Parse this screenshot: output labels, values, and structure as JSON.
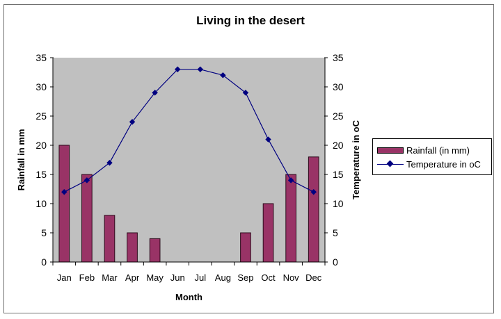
{
  "chart_data": {
    "type": "bar+line",
    "title": "Living in the desert",
    "xlabel": "Month",
    "ylabel": "Rainfall in mm",
    "y2label": "Temperature in oC",
    "categories": [
      "Jan",
      "Feb",
      "Mar",
      "Apr",
      "May",
      "Jun",
      "Jul",
      "Aug",
      "Sep",
      "Oct",
      "Nov",
      "Dec"
    ],
    "series": [
      {
        "name": "Rainfall (in mm)",
        "type": "bar",
        "axis": "left",
        "color": "#993366",
        "values": [
          20,
          15,
          8,
          5,
          4,
          0,
          0,
          0,
          5,
          10,
          15,
          18
        ]
      },
      {
        "name": "Temperature in oC",
        "type": "line",
        "axis": "right",
        "color": "#000080",
        "values": [
          12,
          14,
          17,
          24,
          29,
          33,
          33,
          32,
          29,
          21,
          14,
          12
        ]
      }
    ],
    "ylim": [
      0,
      35
    ],
    "y2lim": [
      0,
      35
    ],
    "yticks": [
      0,
      5,
      10,
      15,
      20,
      25,
      30,
      35
    ],
    "y2ticks": [
      0,
      5,
      10,
      15,
      20,
      25,
      30,
      35
    ],
    "grid": false,
    "plot_background": "#c0c0c0",
    "legend_position": "right"
  }
}
